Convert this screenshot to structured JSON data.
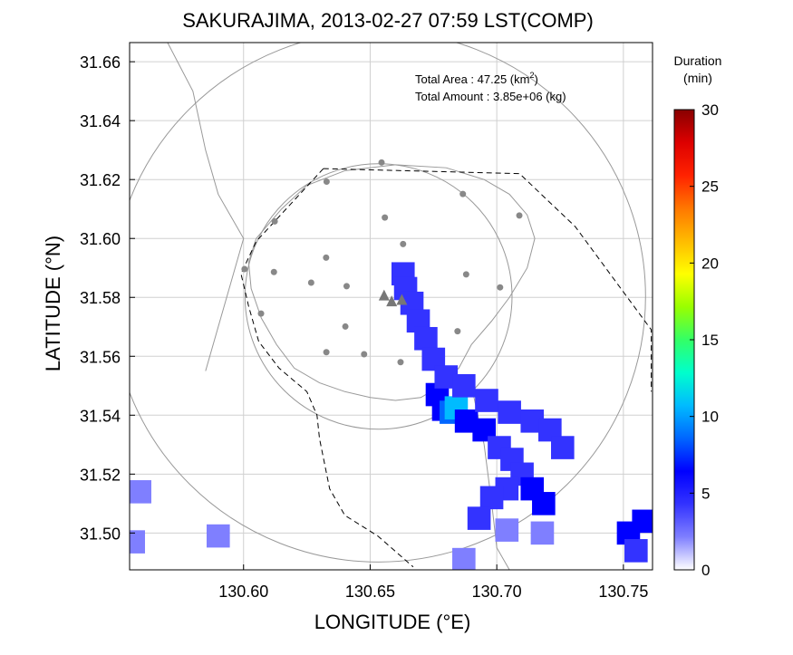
{
  "chart_data": {
    "type": "heatmap",
    "title": "SAKURAJIMA, 2013-02-27 07:59 LST(COMP)",
    "xlabel": "LONGITUDE (°E)",
    "ylabel": "LATITUDE (°N)",
    "xlim": [
      130.555,
      130.7615
    ],
    "ylim": [
      31.4875,
      31.6665
    ],
    "xticks": [
      130.6,
      130.65,
      130.7,
      130.75
    ],
    "xtick_labels": [
      "130.60",
      "130.65",
      "130.70",
      "130.75"
    ],
    "yticks": [
      31.5,
      31.52,
      31.54,
      31.56,
      31.58,
      31.6,
      31.62,
      31.64,
      31.66
    ],
    "ytick_labels": [
      "31.50",
      "31.52",
      "31.54",
      "31.56",
      "31.58",
      "31.60",
      "31.62",
      "31.64",
      "31.66"
    ],
    "grid": true,
    "annotations": {
      "area_label": "Total Area   : 47.25 (km",
      "area_sup": "2",
      "area_close": ")",
      "amount_label": "Total Amount : 3.85e+06 (kg)"
    },
    "colorbar": {
      "title_line1": "Duration",
      "title_line2": "(min)",
      "min": 0,
      "max": 30,
      "ticks": [
        0,
        5,
        10,
        15,
        20,
        25,
        30
      ],
      "tick_labels": [
        "0",
        "5",
        "10",
        "15",
        "20",
        "25",
        "30"
      ],
      "colors": [
        "#ffffff",
        "#7f7fff",
        "#3333ff",
        "#0000ff",
        "#0066ff",
        "#00bbff",
        "#00ffcc",
        "#33ff66",
        "#99ff00",
        "#ffff00",
        "#ffbb00",
        "#ff7700",
        "#ff2200",
        "#dd0000",
        "#880000"
      ]
    },
    "range_circles": [
      {
        "center": [
          130.6533,
          31.5803
        ],
        "radius_km": 10
      },
      {
        "center": [
          130.6533,
          31.5803
        ],
        "radius_km": 5
      }
    ],
    "vent_markers": [
      [
        130.6555,
        31.5805
      ],
      [
        130.6585,
        31.5785
      ],
      [
        130.6625,
        31.579
      ]
    ],
    "stations": [
      [
        130.6545,
        31.6258
      ],
      [
        130.6328,
        31.6193
      ],
      [
        130.6866,
        31.6151
      ],
      [
        130.6123,
        31.6058
      ],
      [
        130.6558,
        31.6071
      ],
      [
        130.7089,
        31.6078
      ],
      [
        130.663,
        31.5981
      ],
      [
        130.6004,
        31.5896
      ],
      [
        130.612,
        31.5886
      ],
      [
        130.6326,
        31.5935
      ],
      [
        130.6879,
        31.5878
      ],
      [
        130.6267,
        31.585
      ],
      [
        130.6407,
        31.5838
      ],
      [
        130.7013,
        31.5834
      ],
      [
        130.6069,
        31.5745
      ],
      [
        130.6402,
        31.5701
      ],
      [
        130.6845,
        31.5685
      ],
      [
        130.6327,
        31.5614
      ],
      [
        130.6476,
        31.5607
      ],
      [
        130.662,
        31.558
      ]
    ],
    "restricted_area": [
      [
        130.6315,
        31.6237
      ],
      [
        130.687,
        31.6225
      ],
      [
        130.709,
        31.622
      ],
      [
        130.731,
        31.604
      ],
      [
        130.761,
        31.569
      ],
      [
        130.761,
        31.548
      ]
    ],
    "restricted_area_lower": [
      [
        130.6315,
        31.6237
      ],
      [
        130.605,
        31.599
      ],
      [
        130.599,
        31.588
      ],
      [
        130.602,
        31.577
      ],
      [
        130.606,
        31.565
      ],
      [
        130.614,
        31.556
      ],
      [
        130.625,
        31.548
      ],
      [
        130.629,
        31.54
      ],
      [
        130.63,
        31.532
      ],
      [
        130.634,
        31.515
      ],
      [
        130.64,
        31.506
      ],
      [
        130.653,
        31.499
      ],
      [
        130.667,
        31.4885
      ]
    ],
    "series": [
      {
        "name": "plume_core",
        "points": [
          [
            130.6765,
            31.547,
            6
          ],
          [
            130.679,
            31.542,
            6
          ],
          [
            130.682,
            31.541,
            9
          ],
          [
            130.684,
            31.5425,
            10
          ],
          [
            130.688,
            31.538,
            6
          ],
          [
            130.695,
            31.535,
            6
          ],
          [
            130.701,
            31.529,
            5
          ],
          [
            130.706,
            31.525,
            5
          ],
          [
            130.71,
            31.52,
            5
          ],
          [
            130.714,
            31.515,
            6
          ],
          [
            130.7185,
            31.51,
            6
          ],
          [
            130.704,
            31.515,
            5
          ]
        ]
      },
      {
        "name": "plume_edge",
        "points": [
          [
            130.663,
            31.588,
            4
          ],
          [
            130.664,
            31.583,
            4
          ],
          [
            130.6665,
            31.578,
            4
          ],
          [
            130.669,
            31.572,
            4
          ],
          [
            130.672,
            31.566,
            4
          ],
          [
            130.675,
            31.559,
            4
          ],
          [
            130.68,
            31.553,
            4
          ],
          [
            130.687,
            31.55,
            4
          ],
          [
            130.696,
            31.545,
            4
          ],
          [
            130.705,
            31.541,
            4
          ],
          [
            130.714,
            31.538,
            4
          ],
          [
            130.721,
            31.535,
            4
          ],
          [
            130.726,
            31.529,
            4
          ],
          [
            130.698,
            31.512,
            4
          ],
          [
            130.693,
            31.505,
            4
          ],
          [
            130.704,
            31.501,
            3
          ],
          [
            130.718,
            31.5,
            3
          ],
          [
            130.687,
            31.491,
            2
          ],
          [
            130.5565,
            31.497,
            3
          ],
          [
            130.559,
            31.514,
            3
          ],
          [
            130.59,
            31.499,
            3
          ],
          [
            130.752,
            31.5,
            6
          ],
          [
            130.758,
            31.504,
            6
          ],
          [
            130.755,
            31.494,
            5
          ]
        ]
      }
    ]
  }
}
